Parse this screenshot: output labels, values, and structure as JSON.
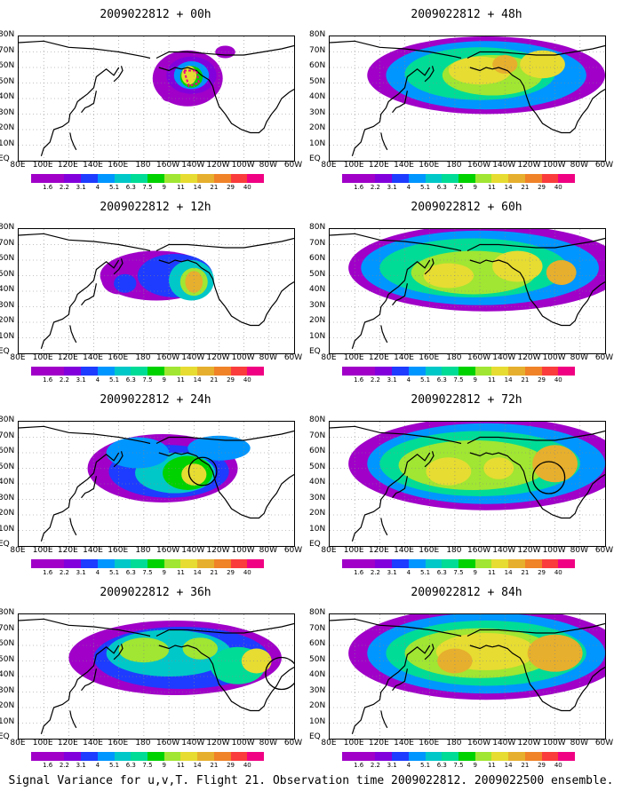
{
  "footer": "Signal Variance for u,v,T. Flight 21. Observation time 2009022812. 2009022500 ensemble.",
  "lat_labels": [
    "80N",
    "70N",
    "60N",
    "50N",
    "40N",
    "30N",
    "20N",
    "10N",
    "EQ"
  ],
  "lon_labels": [
    "80E",
    "100E",
    "120E",
    "140E",
    "160E",
    "180",
    "160W",
    "140W",
    "120W",
    "100W",
    "80W",
    "60W"
  ],
  "colorbar": {
    "levels": [
      "1.6",
      "2.2",
      "3.1",
      "4",
      "5.1",
      "6.3",
      "7.5",
      "9",
      "11",
      "14",
      "21",
      "29",
      "40"
    ],
    "colors": [
      "#a000c8",
      "#8200dc",
      "#1e3cff",
      "#0096ff",
      "#00c8c8",
      "#00dc96",
      "#00d200",
      "#a0e632",
      "#e6dc32",
      "#e6af2d",
      "#f08228",
      "#fa3c3c",
      "#f00082"
    ]
  },
  "panels": [
    {
      "title": "2009022812 + 00h",
      "lead_hours": 0
    },
    {
      "title": "2009022812 + 48h",
      "lead_hours": 48
    },
    {
      "title": "2009022812 + 12h",
      "lead_hours": 12
    },
    {
      "title": "2009022812 + 60h",
      "lead_hours": 60
    },
    {
      "title": "2009022812 + 24h",
      "lead_hours": 24
    },
    {
      "title": "2009022812 + 72h",
      "lead_hours": 72
    },
    {
      "title": "2009022812 + 36h",
      "lead_hours": 36
    },
    {
      "title": "2009022812 + 84h",
      "lead_hours": 84
    }
  ]
}
